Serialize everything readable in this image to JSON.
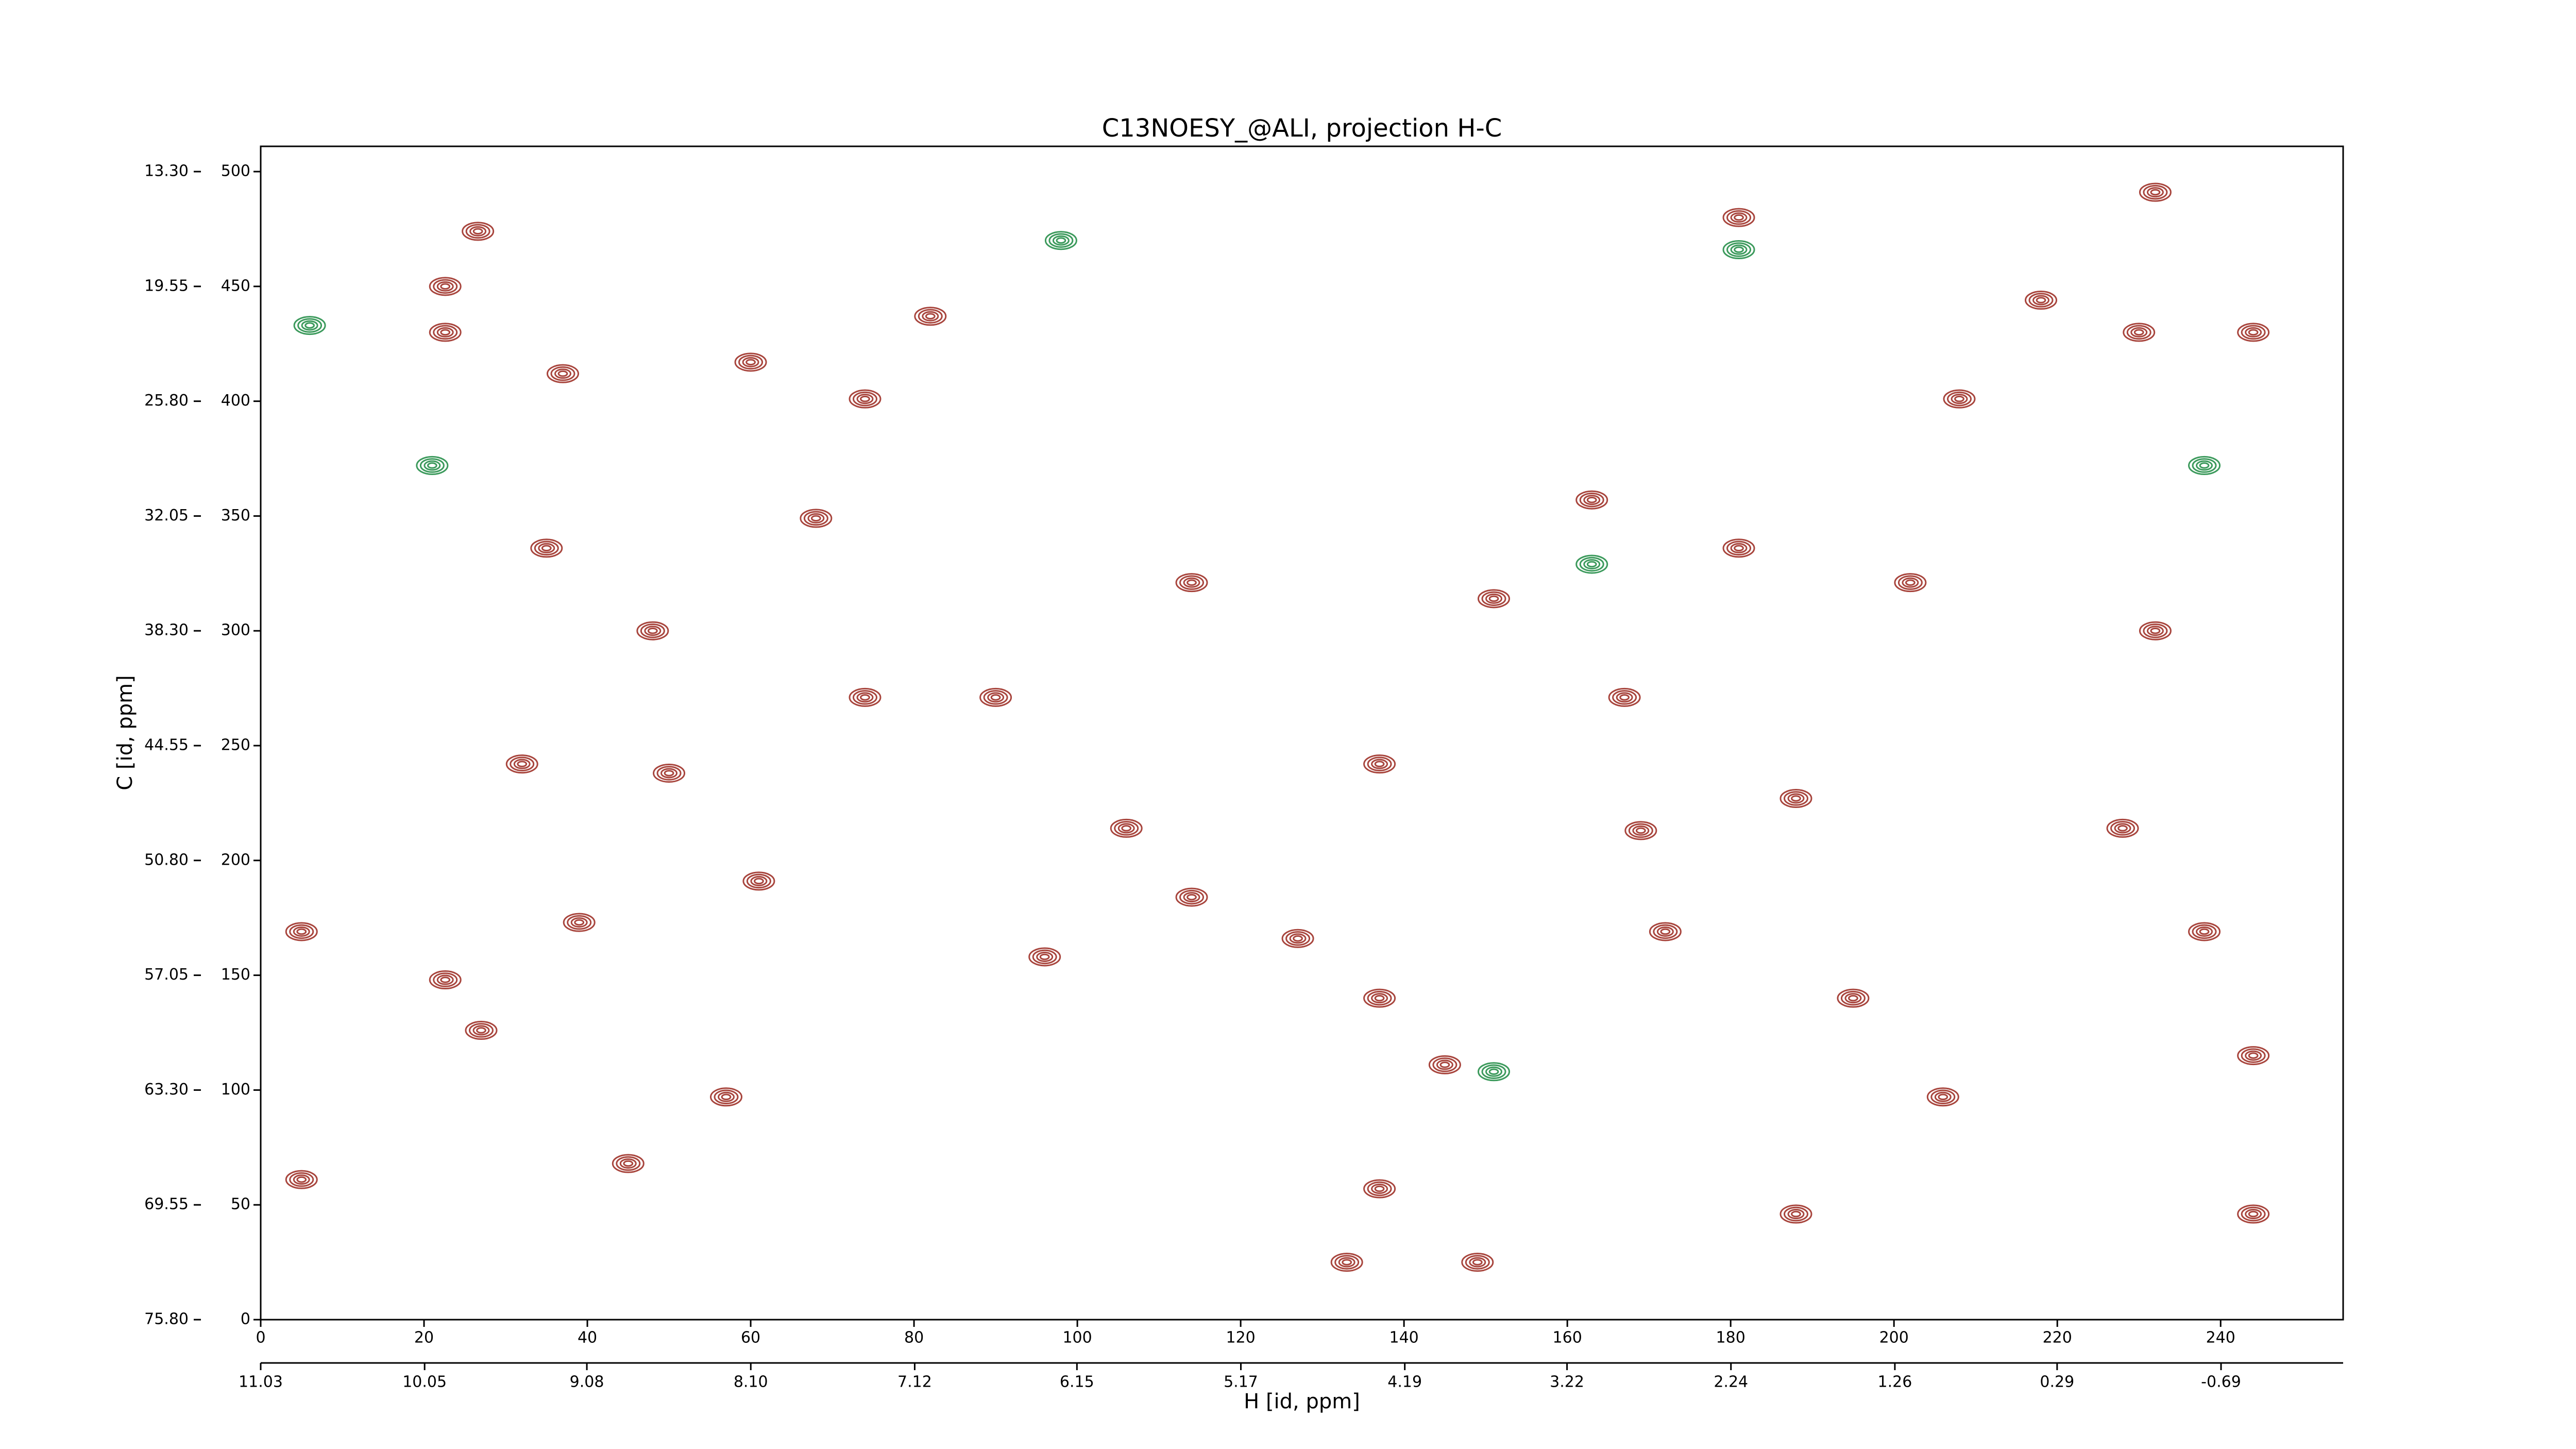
{
  "chart_data": {
    "type": "contour",
    "title": "C13NOESY_@ALI, projection H-C",
    "xlabel": "H [id, ppm]",
    "ylabel": "C [id, ppm]",
    "xlim": [
      0,
      255
    ],
    "xticks": [
      0,
      20,
      40,
      60,
      80,
      100,
      120,
      140,
      160,
      180,
      200,
      220,
      240
    ],
    "ylim": [
      0,
      511
    ],
    "yticks": [
      0,
      50,
      100,
      150,
      200,
      250,
      300,
      350,
      400,
      450,
      500
    ],
    "x2lim": [
      11.03,
      -1.42
    ],
    "x2ticks": [
      {
        "value": 11.03,
        "label": "11.03"
      },
      {
        "value": 10.05,
        "label": "10.05"
      },
      {
        "value": 9.08,
        "label": "9.08"
      },
      {
        "value": 8.1,
        "label": "8.10"
      },
      {
        "value": 7.12,
        "label": "7.12"
      },
      {
        "value": 6.15,
        "label": "6.15"
      },
      {
        "value": 5.17,
        "label": "5.17"
      },
      {
        "value": 4.19,
        "label": "4.19"
      },
      {
        "value": 3.22,
        "label": "3.22"
      },
      {
        "value": 2.24,
        "label": "2.24"
      },
      {
        "value": 1.26,
        "label": "1.26"
      },
      {
        "value": 0.29,
        "label": "0.29"
      },
      {
        "value": -0.69,
        "label": "-0.69"
      }
    ],
    "y2lim": [
      75.8,
      11.925
    ],
    "y2ticks": [
      {
        "value": 75.8,
        "label": "75.80"
      },
      {
        "value": 69.55,
        "label": "69.55"
      },
      {
        "value": 63.3,
        "label": "63.30"
      },
      {
        "value": 57.05,
        "label": "57.05"
      },
      {
        "value": 50.8,
        "label": "50.80"
      },
      {
        "value": 44.55,
        "label": "44.55"
      },
      {
        "value": 38.3,
        "label": "38.30"
      },
      {
        "value": 32.05,
        "label": "32.05"
      },
      {
        "value": 25.8,
        "label": "25.80"
      },
      {
        "value": 19.55,
        "label": "19.55"
      },
      {
        "value": 13.3,
        "label": "13.30"
      }
    ],
    "series": [
      {
        "color": "#a8453d",
        "x": [
          26.6,
          22.6,
          22.6,
          37,
          60,
          74,
          35,
          68,
          48,
          90,
          32,
          50,
          5,
          22.6,
          27,
          61,
          39,
          96,
          106,
          114,
          127,
          137,
          145,
          137,
          133,
          149,
          137,
          167,
          163,
          181,
          202,
          188,
          172,
          195,
          206,
          188,
          218,
          230,
          244,
          232,
          181,
          208,
          232,
          238,
          244,
          228,
          244,
          169,
          151,
          114,
          82,
          74,
          57,
          45,
          5
        ],
        "values": [
          474,
          450,
          430,
          412,
          417,
          401,
          336,
          349,
          300,
          271,
          242,
          238,
          169,
          148,
          126,
          191,
          173,
          158,
          214,
          184,
          166,
          140,
          111,
          57,
          25,
          25,
          242,
          271,
          357,
          336,
          321,
          227,
          169,
          140,
          97,
          46,
          444,
          430,
          430,
          491,
          480,
          401,
          300,
          169,
          115,
          214,
          46,
          213,
          314,
          321,
          437,
          271,
          97,
          68,
          61
        ]
      },
      {
        "color": "#3c9a5c",
        "x": [
          21,
          163,
          181,
          238,
          151,
          98,
          6
        ],
        "values": [
          372,
          329,
          466,
          372,
          108,
          470,
          433
        ]
      }
    ]
  }
}
